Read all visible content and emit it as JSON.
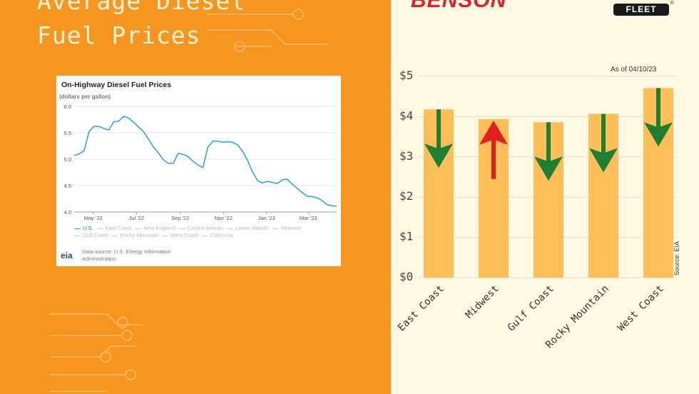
{
  "left_panel": {
    "title_lines": [
      "Average Diesel",
      "Fuel Prices"
    ]
  },
  "eia_card": {
    "title": "On-Highway Diesel Fuel Prices",
    "unit_label": "(dollars per gallon)",
    "legend": [
      "U.S.",
      "East Coast",
      "New England",
      "Central Atlantic",
      "Lower Atlantic",
      "Midwest",
      "Gulf Coast",
      "Rocky Mountain",
      "West Coast",
      "California"
    ],
    "legend_active": "U.S.",
    "logo_text": "eia",
    "source_text": "Data source: U.S. Energy Information Administration",
    "line_color": "#2A9FD6"
  },
  "bar_panel": {
    "brand_text": "BENSON",
    "fleet_badge": "FLEET",
    "registered_mark": "®",
    "as_of": "As of 04/10/23",
    "source": "Source: EIA",
    "colors": {
      "bar": "#FFBE57",
      "down": "#1E7F32",
      "up": "#E02020",
      "grid": "#E3DCC8"
    }
  },
  "chart_data": [
    {
      "type": "line",
      "title": "On-Highway Diesel Fuel Prices",
      "ylabel": "(dollars per gallon)",
      "ylim": [
        4.0,
        6.0
      ],
      "yticks": [
        4.0,
        4.5,
        5.0,
        5.5,
        6.0
      ],
      "ytick_labels": [
        "4.0",
        "4.5",
        "5.0",
        "5.5",
        "6.0"
      ],
      "xticks": [
        "2022-05-01",
        "2022-07-01",
        "2022-09-01",
        "2022-11-01",
        "2023-01-01",
        "2023-03-01"
      ],
      "xtick_labels": [
        "May '22",
        "Jul '22",
        "Sep '22",
        "Nov '22",
        "Jan '23",
        "Mar '23"
      ],
      "xlim": [
        "2022-04-04",
        "2023-04-10"
      ],
      "grid": true,
      "series": [
        {
          "name": "U.S.",
          "x": [
            "2022-04-04",
            "2022-04-11",
            "2022-04-18",
            "2022-04-25",
            "2022-05-02",
            "2022-05-09",
            "2022-05-16",
            "2022-05-23",
            "2022-05-30",
            "2022-06-06",
            "2022-06-13",
            "2022-06-20",
            "2022-06-27",
            "2022-07-04",
            "2022-07-11",
            "2022-07-18",
            "2022-07-25",
            "2022-08-01",
            "2022-08-08",
            "2022-08-15",
            "2022-08-22",
            "2022-08-29",
            "2022-09-05",
            "2022-09-12",
            "2022-09-19",
            "2022-09-26",
            "2022-10-03",
            "2022-10-10",
            "2022-10-17",
            "2022-10-24",
            "2022-10-31",
            "2022-11-07",
            "2022-11-14",
            "2022-11-21",
            "2022-11-28",
            "2022-12-05",
            "2022-12-12",
            "2022-12-19",
            "2022-12-26",
            "2023-01-02",
            "2023-01-09",
            "2023-01-16",
            "2023-01-23",
            "2023-01-30",
            "2023-02-06",
            "2023-02-13",
            "2023-02-20",
            "2023-02-27",
            "2023-03-06",
            "2023-03-13",
            "2023-03-20",
            "2023-03-27",
            "2023-04-03",
            "2023-04-10"
          ],
          "y": [
            5.07,
            5.1,
            5.16,
            5.52,
            5.62,
            5.62,
            5.58,
            5.55,
            5.71,
            5.72,
            5.81,
            5.78,
            5.7,
            5.61,
            5.52,
            5.38,
            5.23,
            5.12,
            4.99,
            4.92,
            4.92,
            5.11,
            5.09,
            5.05,
            4.96,
            4.89,
            4.84,
            5.23,
            5.34,
            5.34,
            5.32,
            5.33,
            5.32,
            5.27,
            5.15,
            4.98,
            4.76,
            4.6,
            4.55,
            4.58,
            4.56,
            4.54,
            4.61,
            4.62,
            4.53,
            4.45,
            4.37,
            4.3,
            4.29,
            4.27,
            4.22,
            4.14,
            4.12,
            4.11
          ]
        }
      ]
    },
    {
      "type": "bar",
      "title": "",
      "categories": [
        "East Coast",
        "Midwest",
        "Gulf Coast",
        "Rocky Mountain",
        "West Coast"
      ],
      "values": [
        4.18,
        3.94,
        3.86,
        4.07,
        4.71
      ],
      "trend": [
        "down",
        "up",
        "down",
        "down",
        "down"
      ],
      "ylim": [
        0,
        5
      ],
      "yticks": [
        0,
        1,
        2,
        3,
        4,
        5
      ],
      "ytick_labels": [
        "$0",
        "$1",
        "$2",
        "$3",
        "$4",
        "$5"
      ],
      "grid": true
    }
  ]
}
